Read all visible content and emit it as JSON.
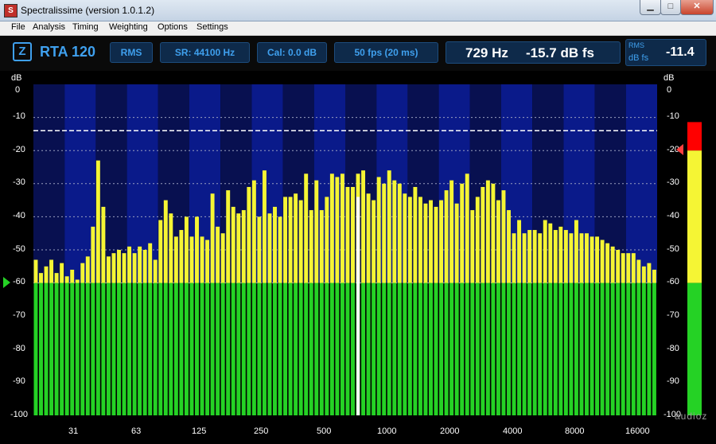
{
  "window": {
    "title": "Spectralissime (version 1.0.1.2)",
    "icon_letter": "S",
    "minimize": "▁",
    "maximize": "□",
    "close": "✕"
  },
  "menu": [
    "File",
    "Analysis",
    "Timing",
    "Weighting",
    "Options",
    "Settings"
  ],
  "toolbar": {
    "z_label": "Z",
    "mode_label": "RTA 120",
    "detector": "RMS",
    "sample_rate": "SR: 44100 Hz",
    "calibration": "Cal:  0.0 dB",
    "frame_rate": "50 fps (20 ms)",
    "cursor_freq": "729 Hz",
    "cursor_level": "-15.7 dB fs",
    "rms_small": "RMS",
    "rms_unit": "dB fs",
    "rms_value": "-11.4"
  },
  "colors": {
    "bar_top": "#f5f534",
    "bar_floor": "#25d225",
    "band_a": "#0a1a8a",
    "band_b": "#081050",
    "cursor": "#ffffff",
    "meter_red": "#ff0000"
  },
  "axis": {
    "unit": "dB",
    "y_ticks": [
      "0",
      "-10",
      "-20",
      "-30",
      "-40",
      "-50",
      "-60",
      "-70",
      "-80",
      "-90",
      "-100"
    ],
    "x_ticks": [
      "31",
      "63",
      "125",
      "250",
      "500",
      "1000",
      "2000",
      "4000",
      "8000",
      "16000"
    ]
  },
  "chart_data": {
    "type": "bar",
    "ylim": [
      -100,
      0
    ],
    "floor_db": -60,
    "peak_hold_db": -14,
    "cursor_hz": 729,
    "xlim_hz": [
      20,
      20000
    ],
    "bar_count": 120,
    "levels_db": [
      -53,
      -57,
      -55,
      -53,
      -57,
      -54,
      -58,
      -56,
      -59,
      -54,
      -52,
      -43,
      -23,
      -37,
      -52,
      -51,
      -50,
      -51,
      -49,
      -51,
      -49,
      -50,
      -48,
      -53,
      -41,
      -35,
      -39,
      -46,
      -44,
      -40,
      -46,
      -40,
      -46,
      -47,
      -33,
      -43,
      -45,
      -32,
      -37,
      -39,
      -38,
      -31,
      -29,
      -40,
      -26,
      -39,
      -37,
      -40,
      -34,
      -34,
      -33,
      -35,
      -27,
      -38,
      -29,
      -38,
      -34,
      -27,
      -28,
      -27,
      -31,
      -31,
      -27,
      -26,
      -33,
      -35,
      -28,
      -30,
      -26,
      -29,
      -30,
      -33,
      -34,
      -31,
      -34,
      -36,
      -35,
      -37,
      -35,
      -32,
      -29,
      -36,
      -30,
      -27,
      -38,
      -34,
      -31,
      -29,
      -30,
      -35,
      -32,
      -38,
      -45,
      -41,
      -45,
      -44,
      -44,
      -45,
      -41,
      -42,
      -44,
      -43,
      -44,
      -45,
      -41,
      -45,
      -45,
      -46,
      -46,
      -47,
      -48,
      -49,
      -50,
      -51,
      -51,
      -51,
      -53,
      -55,
      -54,
      -56
    ]
  },
  "meter": {
    "value_db": -11.4,
    "red_start_db": -20
  },
  "watermark": "audioz"
}
